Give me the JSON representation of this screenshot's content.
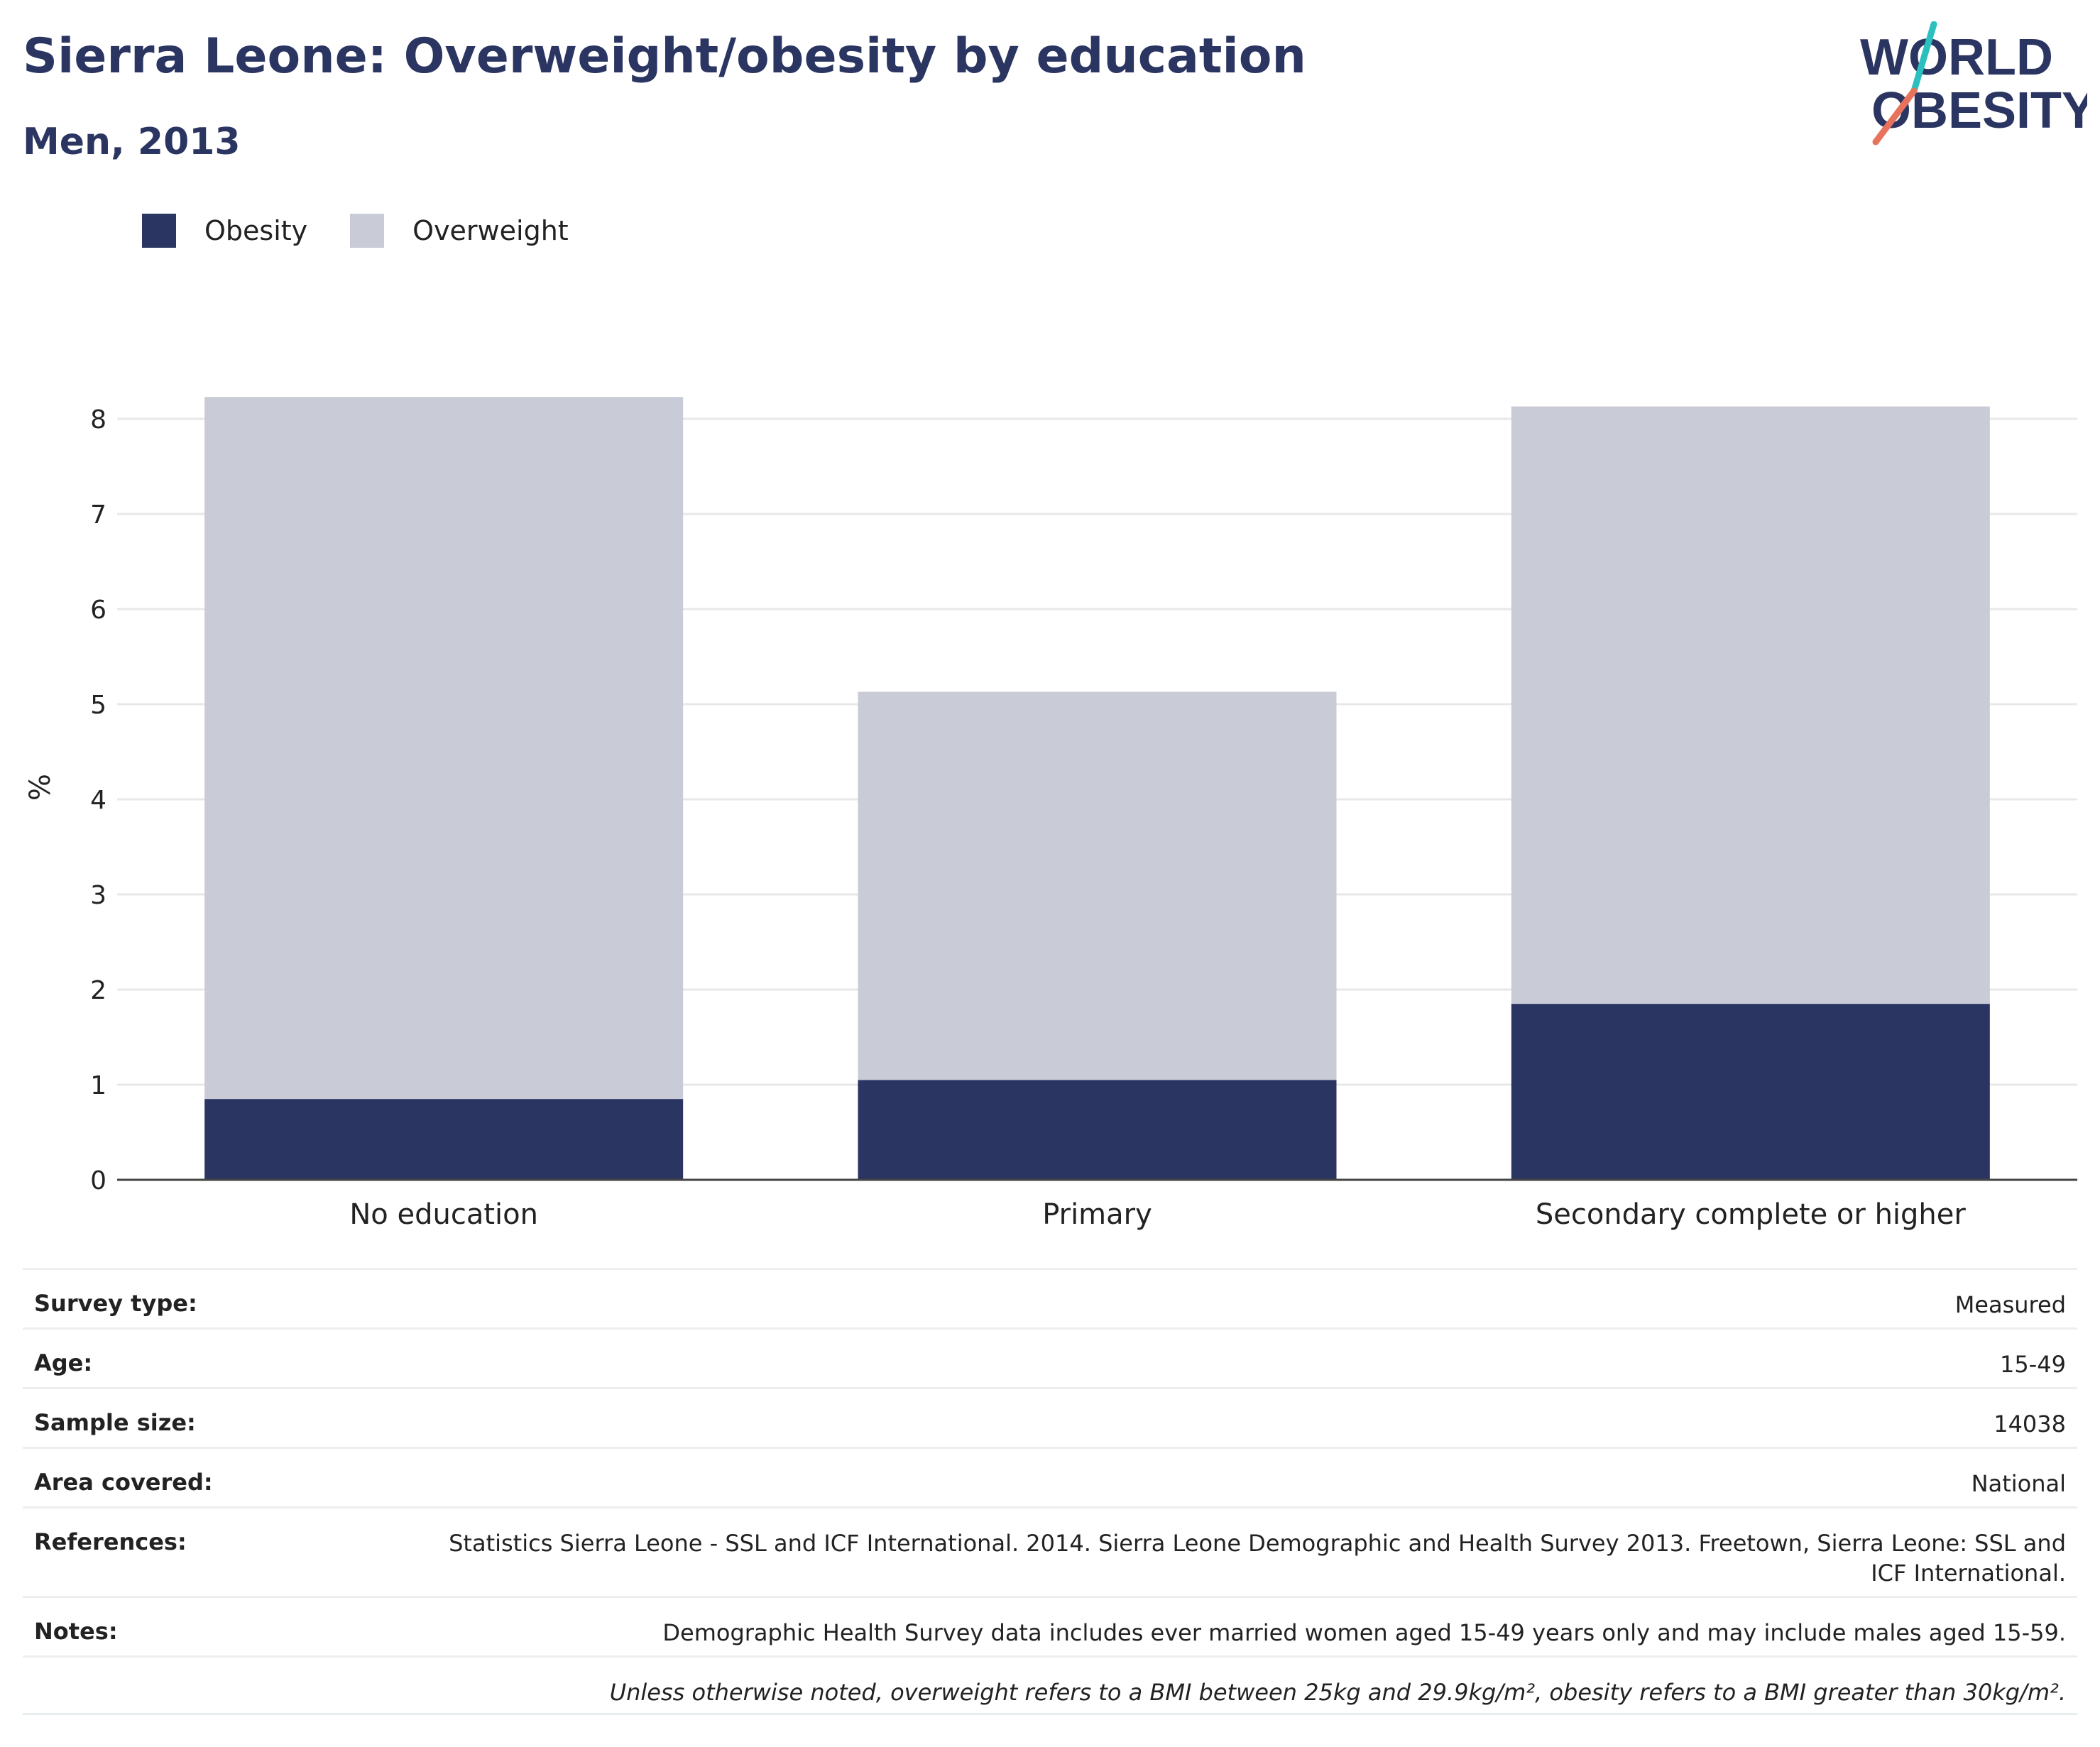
{
  "header": {
    "title": "Sierra Leone: Overweight/obesity by education",
    "subtitle": "Men, 2013",
    "logo_line1": "WORLD",
    "logo_line2": "OBESITY"
  },
  "colors": {
    "obesity": "#2b3562",
    "overweight": "#c9cbd6",
    "title": "#2b3561",
    "logo_teal": "#2bbfbf",
    "logo_coral": "#e8735c"
  },
  "legend": [
    {
      "label": "Obesity",
      "color": "#2b3562"
    },
    {
      "label": "Overweight",
      "color": "#c9cbd6"
    }
  ],
  "chart_data": {
    "type": "bar",
    "stacked": true,
    "categories": [
      "No education",
      "Primary",
      "Secondary complete or higher"
    ],
    "series": [
      {
        "name": "Obesity",
        "values": [
          0.85,
          1.05,
          1.85
        ]
      },
      {
        "name": "Overweight",
        "values": [
          7.38,
          4.08,
          6.28
        ]
      }
    ],
    "ylabel": "%",
    "ylim": [
      0,
      8.5
    ],
    "yticks": [
      0,
      1,
      2,
      3,
      4,
      5,
      6,
      7,
      8
    ],
    "grid": true,
    "legend_position": "top-left"
  },
  "meta": [
    {
      "key": "Survey type:",
      "value": "Measured"
    },
    {
      "key": "Age:",
      "value": "15-49"
    },
    {
      "key": "Sample size:",
      "value": "14038"
    },
    {
      "key": "Area covered:",
      "value": "National"
    },
    {
      "key": "References:",
      "value": "Statistics Sierra Leone - SSL and ICF International. 2014. Sierra Leone Demographic and Health Survey 2013. Freetown, Sierra Leone: SSL and ICF International."
    },
    {
      "key": "Notes:",
      "value": "Demographic Health Survey data includes ever married women aged 15-49 years only and may include males aged 15-59."
    },
    {
      "key": "",
      "value": "Unless otherwise noted, overweight refers to a BMI between 25kg and 29.9kg/m², obesity refers to a BMI greater than 30kg/m²."
    }
  ]
}
